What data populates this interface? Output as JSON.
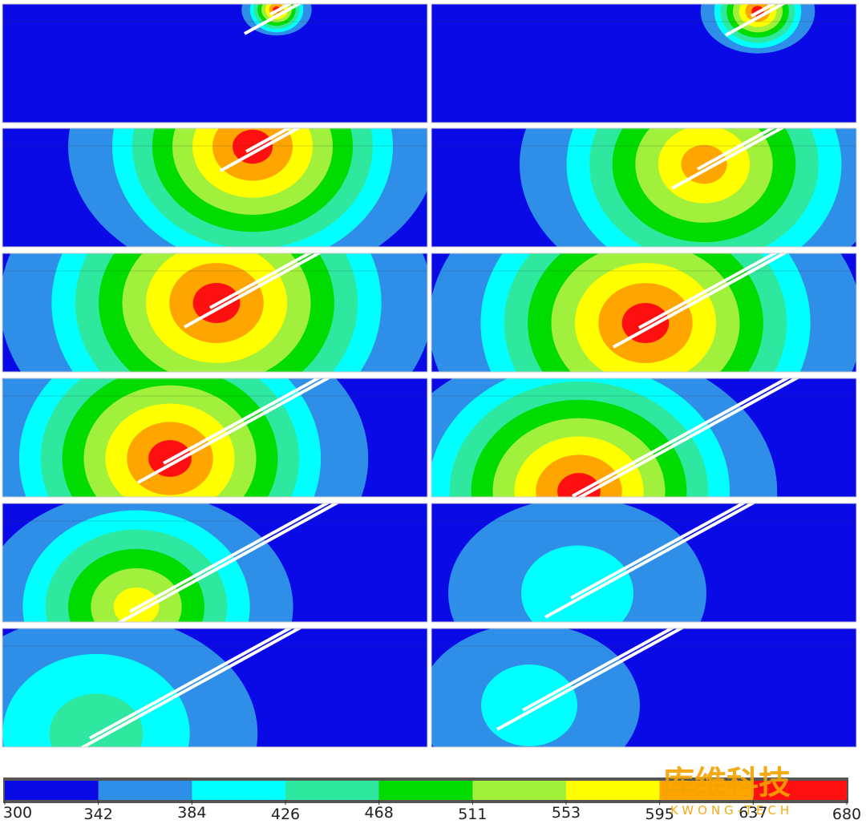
{
  "colorbar": {
    "ticks": [
      300,
      342,
      384,
      426,
      468,
      511,
      553,
      595,
      637,
      680
    ],
    "colors": [
      "#0a0ae6",
      "#2e8ee8",
      "#00ffff",
      "#2ee8a0",
      "#00dc00",
      "#a0f03c",
      "#ffff00",
      "#ffa500",
      "#ff1010"
    ]
  },
  "watermark": {
    "name": "库维科技",
    "brand": "KWONG-TECH"
  }
}
